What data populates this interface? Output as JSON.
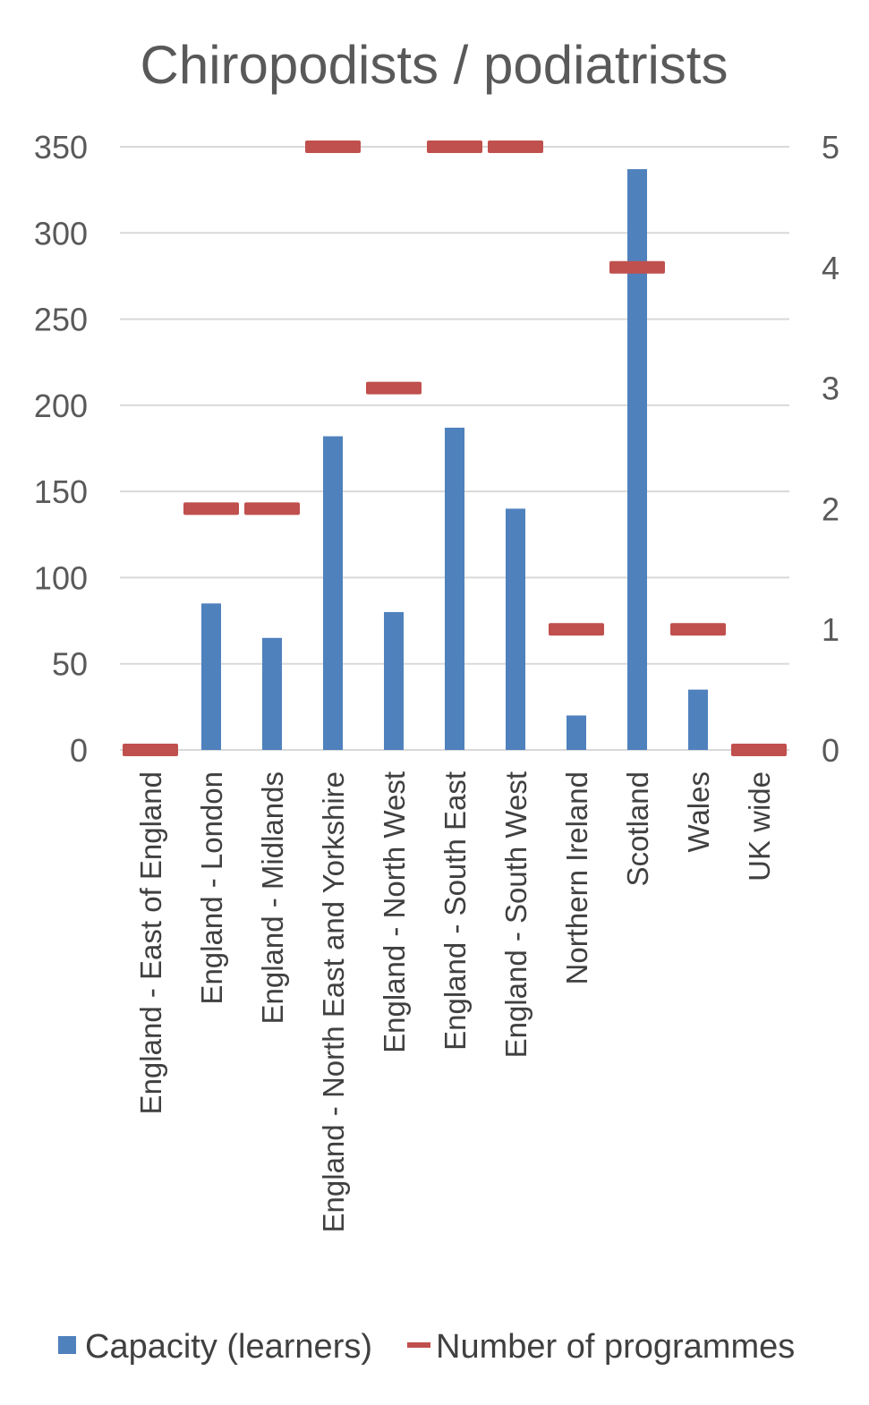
{
  "chart_data": {
    "type": "bar",
    "title": "Chiropodists / podiatrists",
    "categories": [
      "England - East of England",
      "England - London",
      "England - Midlands",
      "England - North East and Yorkshire",
      "England - North West",
      "England - South East",
      "England - South West",
      "Northern Ireland",
      "Scotland",
      "Wales",
      "UK wide"
    ],
    "series": [
      {
        "name": "Capacity (learners)",
        "kind": "bar",
        "axis": "left",
        "color": "#4F81BD",
        "values": [
          0,
          85,
          65,
          182,
          80,
          187,
          140,
          20,
          337,
          35,
          0
        ]
      },
      {
        "name": "Number of programmes",
        "kind": "marker",
        "axis": "right",
        "color": "#C0504D",
        "values": [
          0,
          2,
          2,
          5,
          3,
          5,
          5,
          1,
          4,
          1,
          0
        ]
      }
    ],
    "y_left": {
      "min": 0,
      "max": 350,
      "ticks": [
        "0",
        "50",
        "100",
        "150",
        "200",
        "250",
        "300",
        "350"
      ]
    },
    "y_right": {
      "min": 0,
      "max": 5,
      "ticks": [
        "0",
        "1",
        "2",
        "3",
        "4",
        "5"
      ]
    },
    "grid": true,
    "legend_position": "bottom"
  }
}
